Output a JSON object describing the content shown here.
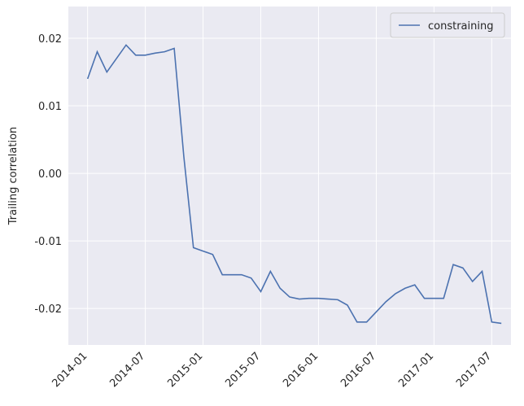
{
  "chart_data": {
    "type": "line",
    "ylabel": "Trailing correlation",
    "x": [
      "2014-01",
      "2014-02",
      "2014-03",
      "2014-04",
      "2014-05",
      "2014-06",
      "2014-07",
      "2014-08",
      "2014-09",
      "2014-10",
      "2014-11",
      "2014-12",
      "2015-01",
      "2015-02",
      "2015-03",
      "2015-04",
      "2015-05",
      "2015-06",
      "2015-07",
      "2015-08",
      "2015-09",
      "2015-10",
      "2015-11",
      "2015-12",
      "2016-01",
      "2016-02",
      "2016-03",
      "2016-04",
      "2016-05",
      "2016-06",
      "2016-07",
      "2016-08",
      "2016-09",
      "2016-10",
      "2016-11",
      "2016-12",
      "2017-01",
      "2017-02",
      "2017-03",
      "2017-04",
      "2017-05",
      "2017-06",
      "2017-07",
      "2017-08"
    ],
    "series": [
      {
        "name": "constraining",
        "color": "#4c72b0",
        "values": [
          0.014,
          0.018,
          0.015,
          0.017,
          0.019,
          0.0175,
          0.0175,
          0.0178,
          0.018,
          0.0185,
          0.0025,
          -0.011,
          -0.0115,
          -0.012,
          -0.015,
          -0.015,
          -0.015,
          -0.0155,
          -0.0175,
          -0.0145,
          -0.017,
          -0.0183,
          -0.0186,
          -0.0185,
          -0.0185,
          -0.0186,
          -0.0187,
          -0.0195,
          -0.022,
          -0.022,
          -0.0205,
          -0.019,
          -0.0178,
          -0.017,
          -0.0165,
          -0.0185,
          -0.0185,
          -0.0185,
          -0.0135,
          -0.014,
          -0.016,
          -0.0145,
          -0.022,
          -0.0222
        ]
      }
    ],
    "xlim": [
      "2013-11",
      "2017-09"
    ],
    "xticks": [
      "2014-01",
      "2014-07",
      "2015-01",
      "2015-07",
      "2016-01",
      "2016-07",
      "2017-01",
      "2017-07"
    ],
    "ylim": [
      -0.0254,
      0.0247
    ],
    "yticks": [
      -0.02,
      -0.01,
      {
        "value": 0,
        "label": "0.00"
      },
      0.01,
      0.02
    ],
    "grid": true,
    "legend": "upper right"
  }
}
